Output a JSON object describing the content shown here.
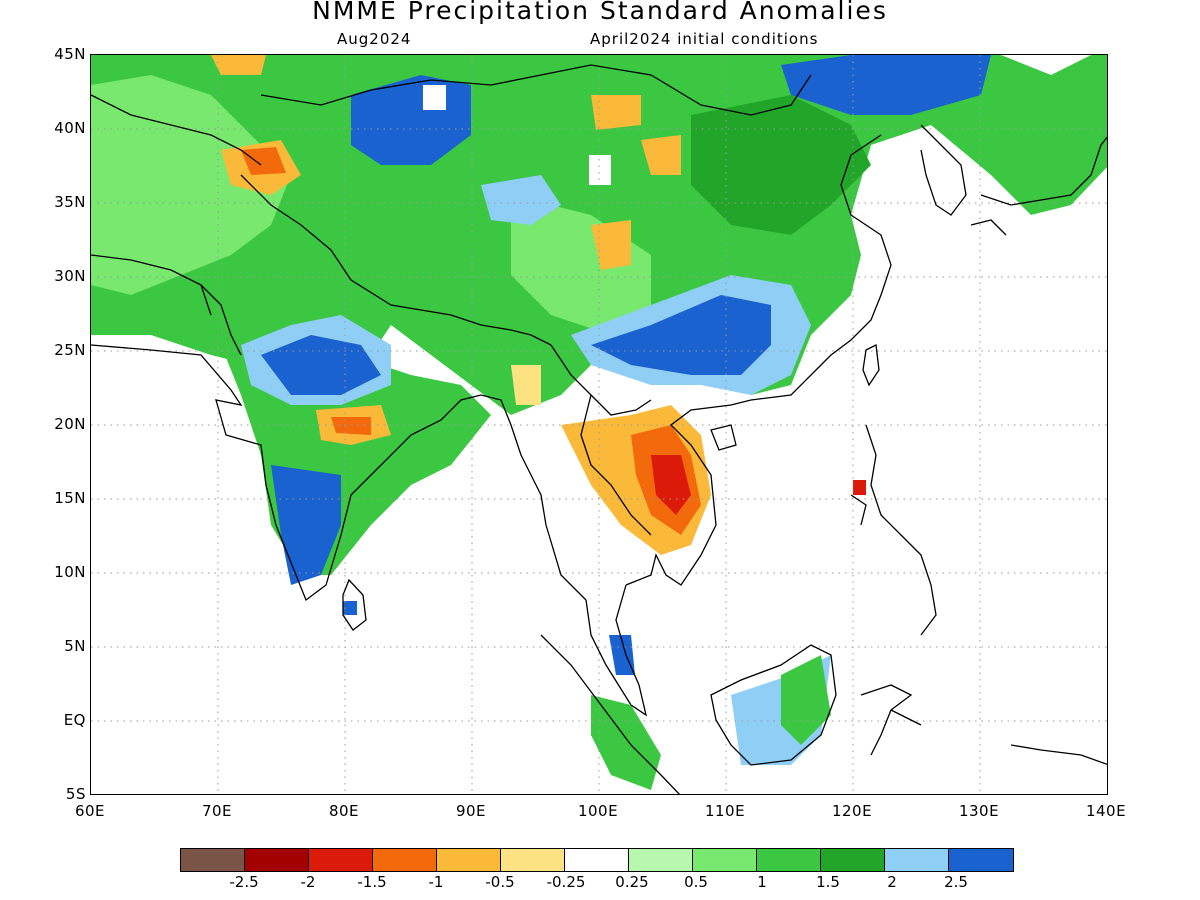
{
  "title": "NMME Precipitation Standard Anomalies",
  "subtitle_left": "Aug2024",
  "subtitle_right": "April2024 initial conditions",
  "axes": {
    "lat_labels": [
      "45N",
      "40N",
      "35N",
      "30N",
      "25N",
      "20N",
      "15N",
      "10N",
      "5N",
      "EQ",
      "5S"
    ],
    "lon_labels": [
      "60E",
      "70E",
      "80E",
      "90E",
      "100E",
      "110E",
      "120E",
      "130E",
      "140E"
    ],
    "lon_range": [
      60,
      140
    ],
    "lat_range": [
      -5,
      45
    ],
    "grid": "dotted"
  },
  "colorbar": {
    "colors": [
      "#7a5446",
      "#a30000",
      "#dc1a0a",
      "#f26a0c",
      "#fbb939",
      "#fde282",
      "#ffffff",
      "#b8f7ae",
      "#78e96e",
      "#3cc742",
      "#22a629",
      "#8fcef5",
      "#1a62d0"
    ],
    "labels": [
      "-2.5",
      "-2",
      "-1.5",
      "-1",
      "-0.5",
      "-0.25",
      "0.25",
      "0.5",
      "1",
      "1.5",
      "2",
      "2.5"
    ]
  },
  "legend_placement": "bottom"
}
